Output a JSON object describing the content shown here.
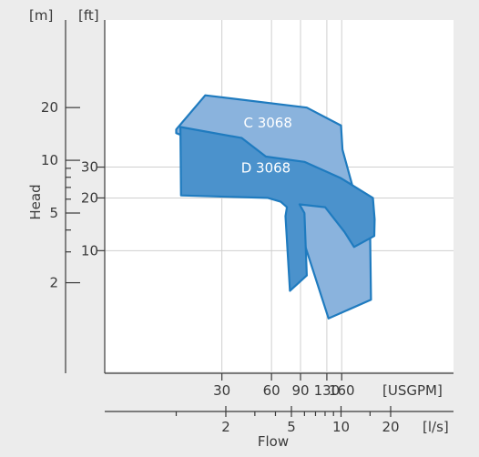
{
  "chart_data": {
    "type": "area",
    "title": "",
    "xlabel": "Flow",
    "ylabel": "Head",
    "x_scale": "log",
    "y_scale": "log",
    "grid": true,
    "x_axes": [
      {
        "unit": "[USGPM]",
        "ticks": [
          "30",
          "60",
          "90",
          "130",
          "160"
        ]
      },
      {
        "unit": "[l/s]",
        "ticks": [
          "2",
          "5",
          "10",
          "20"
        ]
      }
    ],
    "y_axes": [
      {
        "unit": "[m]",
        "ticks": [
          "2",
          "5",
          "10",
          "20"
        ]
      },
      {
        "unit": "[ft]",
        "ticks": [
          "10",
          "20",
          "30"
        ]
      }
    ],
    "series": [
      {
        "name": "C 3068",
        "color": "#8ab3dd",
        "unit_x": "l/s",
        "unit_y": "m",
        "points": [
          [
            1.0,
            15.0
          ],
          [
            1.5,
            23.5
          ],
          [
            6.2,
            20.0
          ],
          [
            10.0,
            15.8
          ],
          [
            10.2,
            11.5
          ],
          [
            11.8,
            7.0
          ],
          [
            15.0,
            4.0
          ],
          [
            15.2,
            1.6
          ],
          [
            8.4,
            1.25
          ],
          [
            5.5,
            4.3
          ],
          [
            6.0,
            4.9
          ],
          [
            2.6,
            10.0
          ],
          [
            1.0,
            14.3
          ]
        ]
      },
      {
        "name": "D 3068",
        "color": "#4b92cc",
        "unit_x": "l/s",
        "unit_y": "m",
        "points": [
          [
            1.06,
            15.5
          ],
          [
            2.5,
            13.4
          ],
          [
            3.5,
            10.5
          ],
          [
            6.0,
            9.8
          ],
          [
            10.0,
            7.9
          ],
          [
            15.6,
            6.1
          ],
          [
            16.0,
            4.6
          ],
          [
            15.9,
            3.7
          ],
          [
            12.0,
            3.2
          ],
          [
            10.5,
            3.9
          ],
          [
            8.0,
            5.4
          ],
          [
            5.6,
            5.6
          ],
          [
            6.0,
            5.0
          ],
          [
            6.2,
            2.2
          ],
          [
            4.9,
            1.8
          ],
          [
            4.6,
            4.8
          ],
          [
            4.7,
            5.4
          ],
          [
            4.3,
            5.8
          ],
          [
            3.6,
            6.1
          ],
          [
            1.07,
            6.3
          ]
        ]
      }
    ]
  }
}
